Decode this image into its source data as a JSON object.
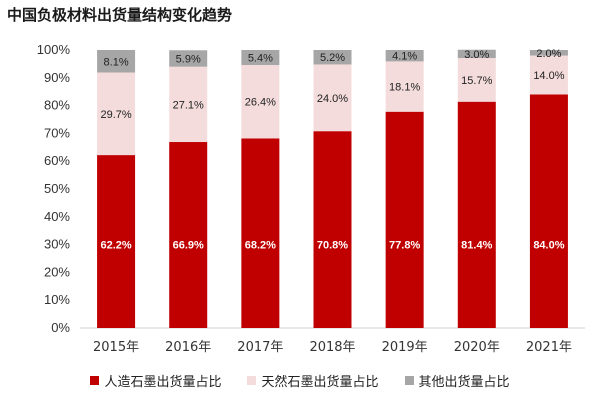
{
  "chart_data": {
    "type": "bar",
    "stacked": true,
    "title": "中国负极材料出货量结构变化趋势",
    "categories": [
      "2015年",
      "2016年",
      "2017年",
      "2018年",
      "2019年",
      "2020年",
      "2021年"
    ],
    "series": [
      {
        "name": "人造石墨出货量占比",
        "color": "#c00000",
        "label_color": "#ffffff",
        "values": [
          62.2,
          66.9,
          68.2,
          70.8,
          77.8,
          81.4,
          84.0
        ],
        "labels": [
          "62.2%",
          "66.9%",
          "68.2%",
          "70.8%",
          "77.8%",
          "81.4%",
          "84.0%"
        ]
      },
      {
        "name": "天然石墨出货量占比",
        "color": "#f4dcdc",
        "label_color": "#222222",
        "values": [
          29.7,
          27.1,
          26.4,
          24.0,
          18.1,
          15.7,
          14.0
        ],
        "labels": [
          "29.7%",
          "27.1%",
          "26.4%",
          "24.0%",
          "18.1%",
          "15.7%",
          "14.0%"
        ]
      },
      {
        "name": "其他出货量占比",
        "color": "#a6a6a6",
        "label_color": "#222222",
        "values": [
          8.1,
          5.9,
          5.4,
          5.2,
          4.1,
          3.0,
          2.0
        ],
        "labels": [
          "8.1%",
          "5.9%",
          "5.4%",
          "5.2%",
          "4.1%",
          "3.0%",
          "2.0%"
        ]
      }
    ],
    "yticks": [
      "0%",
      "10%",
      "20%",
      "30%",
      "40%",
      "50%",
      "60%",
      "70%",
      "80%",
      "90%",
      "100%"
    ],
    "ylim": [
      0,
      100
    ],
    "grid": false,
    "legend_position": "bottom"
  }
}
